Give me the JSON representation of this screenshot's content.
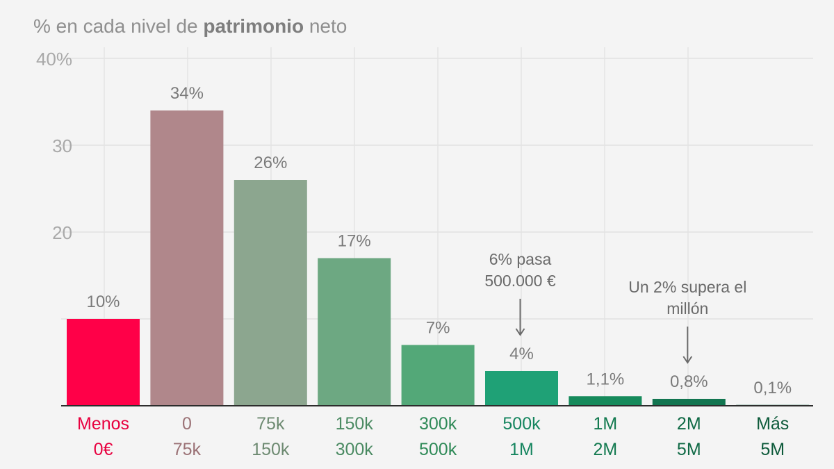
{
  "title": {
    "prefix": "% en cada nivel de ",
    "bold": "patrimonio",
    "suffix": " neto"
  },
  "chart_data": {
    "type": "bar",
    "title": "% en cada nivel de patrimonio neto",
    "ylim": [
      0,
      40
    ],
    "y_ticks": [
      {
        "value": 20,
        "label": "20"
      },
      {
        "value": 30,
        "label": "30"
      },
      {
        "value": 40,
        "label": "40%"
      }
    ],
    "grid": true,
    "bars": [
      {
        "line1": "Menos",
        "line2": "0€",
        "value": 10,
        "label": "10%",
        "color": "#ff0048",
        "label_color": "#e8003f"
      },
      {
        "line1": "0",
        "line2": "75k",
        "value": 34,
        "label": "34%",
        "color": "#b0878b",
        "label_color": "#9b7276"
      },
      {
        "line1": "75k",
        "line2": "150k",
        "value": 26,
        "label": "26%",
        "color": "#8ca68f",
        "label_color": "#6d8a71"
      },
      {
        "line1": "150k",
        "line2": "300k",
        "value": 17,
        "label": "17%",
        "color": "#6da882",
        "label_color": "#4a8a62"
      },
      {
        "line1": "300k",
        "line2": "500k",
        "value": 7,
        "label": "7%",
        "color": "#53a878",
        "label_color": "#2f8a58"
      },
      {
        "line1": "500k",
        "line2": "1M",
        "value": 4,
        "label": "4%",
        "color": "#1fa176",
        "label_color": "#15855f"
      },
      {
        "line1": "1M",
        "line2": "2M",
        "value": 1.1,
        "label": "1,1%",
        "color": "#168a5b",
        "label_color": "#137a50"
      },
      {
        "line1": "2M",
        "line2": "5M",
        "value": 0.8,
        "label": "0,8%",
        "color": "#127550",
        "label_color": "#106a46"
      },
      {
        "line1": "Más",
        "line2": "5M",
        "value": 0.1,
        "label": "0,1%",
        "color": "#0f5f40",
        "label_color": "#0d5a3a"
      }
    ],
    "annotations": [
      {
        "bar_index": 5,
        "lines": [
          "6% pasa",
          "500.000 €"
        ]
      },
      {
        "bar_index": 7,
        "lines": [
          "Un 2% supera el",
          "millón"
        ]
      }
    ]
  }
}
